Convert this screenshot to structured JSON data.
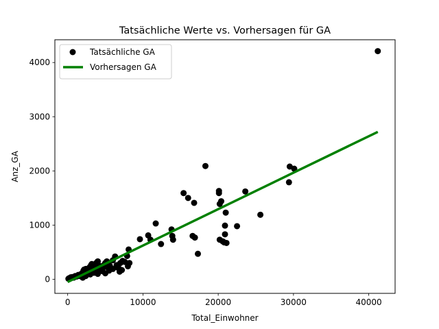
{
  "chart_data": {
    "type": "scatter",
    "title": "Tatsächliche Werte vs. Vorhersagen für GA",
    "xlabel": "Total_Einwohner",
    "ylabel": "Anz_GA",
    "xlim": [
      -1700,
      43500
    ],
    "ylim": [
      -260,
      4420
    ],
    "xticks": [
      0,
      10000,
      20000,
      30000,
      40000
    ],
    "yticks": [
      0,
      1000,
      2000,
      3000,
      4000
    ],
    "grid": false,
    "legend_position": "top-left",
    "series": [
      {
        "name": "Tatsächliche GA",
        "kind": "scatter",
        "color": "#000000",
        "points": [
          [
            100,
            10
          ],
          [
            200,
            20
          ],
          [
            400,
            35
          ],
          [
            600,
            40
          ],
          [
            800,
            30
          ],
          [
            1000,
            60
          ],
          [
            1200,
            50
          ],
          [
            1400,
            80
          ],
          [
            1600,
            60
          ],
          [
            1800,
            100
          ],
          [
            2000,
            120
          ],
          [
            2100,
            160
          ],
          [
            2200,
            180
          ],
          [
            2400,
            190
          ],
          [
            2500,
            140
          ],
          [
            2700,
            170
          ],
          [
            2900,
            220
          ],
          [
            3100,
            260
          ],
          [
            3200,
            280
          ],
          [
            3400,
            240
          ],
          [
            3600,
            200
          ],
          [
            3800,
            300
          ],
          [
            4000,
            330
          ],
          [
            4200,
            250
          ],
          [
            4500,
            200
          ],
          [
            4800,
            260
          ],
          [
            5000,
            300
          ],
          [
            5200,
            330
          ],
          [
            5400,
            280
          ],
          [
            5600,
            250
          ],
          [
            5800,
            200
          ],
          [
            6000,
            350
          ],
          [
            6300,
            420
          ],
          [
            6500,
            260
          ],
          [
            6800,
            200
          ],
          [
            7000,
            300
          ],
          [
            7300,
            340
          ],
          [
            7600,
            320
          ],
          [
            7900,
            430
          ],
          [
            8100,
            550
          ],
          [
            8200,
            300
          ],
          [
            2000,
            30
          ],
          [
            2400,
            60
          ],
          [
            3000,
            90
          ],
          [
            3500,
            120
          ],
          [
            4000,
            100
          ],
          [
            4600,
            150
          ],
          [
            5000,
            110
          ],
          [
            5500,
            160
          ],
          [
            6000,
            190
          ],
          [
            6600,
            220
          ],
          [
            7200,
            170
          ],
          [
            8000,
            240
          ],
          [
            2300,
            90
          ],
          [
            2800,
            130
          ],
          [
            3300,
            150
          ],
          [
            3900,
            170
          ],
          [
            4400,
            210
          ],
          [
            5100,
            230
          ],
          [
            6900,
            140
          ],
          [
            9600,
            740
          ],
          [
            10700,
            810
          ],
          [
            11000,
            730
          ],
          [
            11700,
            1030
          ],
          [
            12400,
            650
          ],
          [
            13800,
            920
          ],
          [
            13900,
            800
          ],
          [
            14000,
            730
          ],
          [
            15400,
            1590
          ],
          [
            16000,
            1500
          ],
          [
            16600,
            800
          ],
          [
            16800,
            1410
          ],
          [
            16900,
            770
          ],
          [
            17300,
            470
          ],
          [
            18300,
            2090
          ],
          [
            20100,
            1630
          ],
          [
            20100,
            1590
          ],
          [
            20200,
            1390
          ],
          [
            20200,
            730
          ],
          [
            20400,
            1440
          ],
          [
            20600,
            700
          ],
          [
            20800,
            680
          ],
          [
            20900,
            830
          ],
          [
            20900,
            990
          ],
          [
            21000,
            1230
          ],
          [
            21100,
            670
          ],
          [
            22500,
            980
          ],
          [
            23600,
            1620
          ],
          [
            25600,
            1190
          ],
          [
            29400,
            1790
          ],
          [
            29500,
            2080
          ],
          [
            30100,
            2040
          ],
          [
            41200,
            4210
          ]
        ]
      },
      {
        "name": "Vorhersagen GA",
        "kind": "line",
        "color": "#008000",
        "x": [
          0,
          41200
        ],
        "y": [
          -50,
          2720
        ]
      }
    ]
  }
}
